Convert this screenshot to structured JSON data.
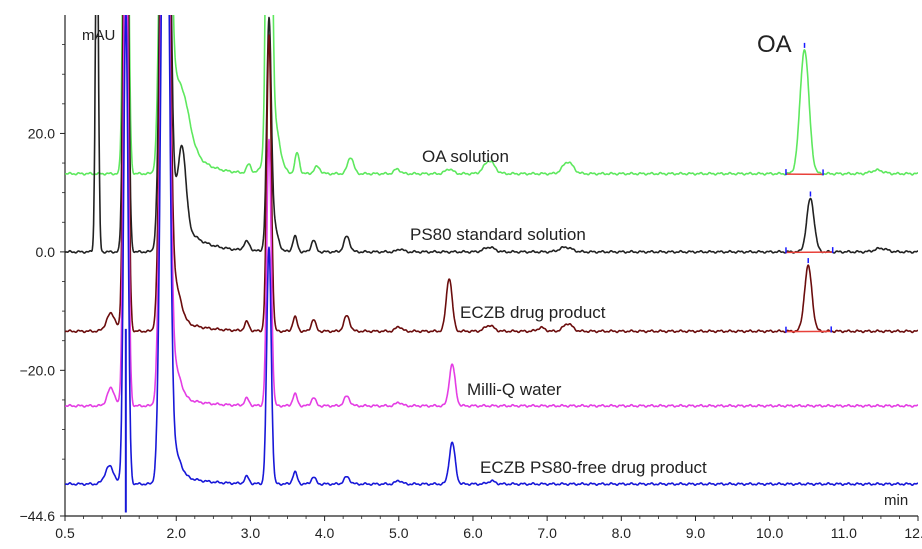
{
  "chart_data": {
    "type": "line",
    "title": "",
    "xlabel": "min",
    "ylabel": "mAU",
    "xlim": [
      0.5,
      12.0
    ],
    "ylim": [
      -44.6,
      40.0
    ],
    "x_ticks": [
      "0.5",
      "2.0",
      "3.0",
      "4.0",
      "5.0",
      "6.0",
      "7.0",
      "8.0",
      "9.0",
      "10.0",
      "11.0",
      "12.0"
    ],
    "y_ticks": [
      "20.0",
      "0.0",
      "-20.0",
      "-44.6"
    ],
    "peak_label": "OA",
    "grid": false,
    "series": [
      {
        "label": "OA solution",
        "color": "#5ee85e",
        "baseline": 13.2,
        "peaks": [
          [
            1.32,
            0.03,
            95
          ],
          [
            1.85,
            0.05,
            140
          ],
          [
            2.08,
            0.1,
            7
          ],
          [
            3.25,
            0.03,
            120
          ],
          [
            3.3,
            0.08,
            10
          ],
          [
            2.98,
            0.03,
            1.5
          ],
          [
            3.63,
            0.03,
            3.5
          ],
          [
            3.9,
            0.04,
            1.2
          ],
          [
            4.35,
            0.04,
            2.8
          ],
          [
            4.98,
            0.04,
            0.8
          ],
          [
            5.68,
            0.05,
            0.8
          ],
          [
            6.22,
            0.07,
            2.2
          ],
          [
            7.28,
            0.07,
            2
          ],
          [
            10.47,
            0.06,
            21
          ],
          [
            11.45,
            0.08,
            0.6
          ]
        ],
        "decay": [
          [
            1.9,
            17,
            0.22
          ],
          [
            1.1,
            0,
            0
          ]
        ]
      },
      {
        "label": "PS80 standard solution",
        "color": "#222222",
        "baseline": 0.0,
        "peaks": [
          [
            0.93,
            0.02,
            60
          ],
          [
            1.32,
            0.03,
            95
          ],
          [
            1.85,
            0.05,
            140
          ],
          [
            2.08,
            0.05,
            12
          ],
          [
            2.0,
            0.12,
            2
          ],
          [
            2.95,
            0.04,
            1.5
          ],
          [
            3.25,
            0.03,
            36
          ],
          [
            3.3,
            0.06,
            5
          ],
          [
            3.6,
            0.03,
            2.6
          ],
          [
            3.85,
            0.03,
            2
          ],
          [
            4.3,
            0.04,
            2.6
          ],
          [
            5.02,
            0.04,
            0.5
          ],
          [
            6.22,
            0.07,
            0.8
          ],
          [
            7.25,
            0.08,
            0.8
          ],
          [
            10.55,
            0.05,
            9
          ],
          [
            11.5,
            0.08,
            0.6
          ]
        ],
        "decay": [
          [
            1.9,
            8,
            0.3
          ],
          [
            0.9,
            0,
            0
          ]
        ]
      },
      {
        "label": "ECZB drug product",
        "color": "#6b0d0d",
        "baseline": -13.4,
        "peaks": [
          [
            1.12,
            0.06,
            3
          ],
          [
            1.32,
            0.03,
            100
          ],
          [
            1.85,
            0.05,
            140
          ],
          [
            2.0,
            0.07,
            5
          ],
          [
            2.95,
            0.03,
            1.5
          ],
          [
            3.25,
            0.03,
            50
          ],
          [
            3.6,
            0.03,
            2.4
          ],
          [
            3.85,
            0.03,
            2
          ],
          [
            4.3,
            0.04,
            2.6
          ],
          [
            5.0,
            0.04,
            0.8
          ],
          [
            5.68,
            0.04,
            9
          ],
          [
            6.22,
            0.06,
            1
          ],
          [
            6.92,
            0.05,
            0.6
          ],
          [
            7.28,
            0.06,
            1.3
          ],
          [
            10.52,
            0.05,
            11
          ]
        ],
        "decay": [
          [
            1.9,
            3,
            0.3
          ],
          [
            1.05,
            0,
            0
          ]
        ]
      },
      {
        "label": "Milli-Q water",
        "color": "#e43de4",
        "baseline": -26.0,
        "peaks": [
          [
            1.12,
            0.05,
            3
          ],
          [
            1.32,
            0.03,
            90
          ],
          [
            1.85,
            0.05,
            140
          ],
          [
            2.0,
            0.07,
            4
          ],
          [
            2.95,
            0.03,
            1.2
          ],
          [
            3.25,
            0.03,
            45
          ],
          [
            3.6,
            0.03,
            2
          ],
          [
            3.85,
            0.03,
            1.4
          ],
          [
            4.3,
            0.04,
            1.6
          ],
          [
            5.0,
            0.04,
            0.6
          ],
          [
            5.72,
            0.04,
            7
          ]
        ],
        "decay": [
          [
            1.9,
            2.5,
            0.3
          ],
          [
            1.05,
            0,
            0
          ]
        ]
      },
      {
        "label": "ECZB PS80-free drug product",
        "color": "#1818d8",
        "baseline": -39.2,
        "peaks": [
          [
            1.1,
            0.06,
            3
          ],
          [
            1.32,
            0.03,
            80
          ],
          [
            1.85,
            0.05,
            140
          ],
          [
            2.0,
            0.07,
            3
          ],
          [
            2.95,
            0.03,
            1.2
          ],
          [
            3.25,
            0.03,
            40
          ],
          [
            3.6,
            0.03,
            2
          ],
          [
            3.85,
            0.03,
            1.2
          ],
          [
            4.3,
            0.04,
            1.2
          ],
          [
            5.0,
            0.04,
            0.6
          ],
          [
            5.72,
            0.04,
            7
          ],
          [
            6.25,
            0.05,
            0.5
          ]
        ],
        "decay": [
          [
            1.9,
            2.5,
            0.3
          ],
          [
            1.05,
            0,
            0
          ]
        ]
      }
    ]
  }
}
